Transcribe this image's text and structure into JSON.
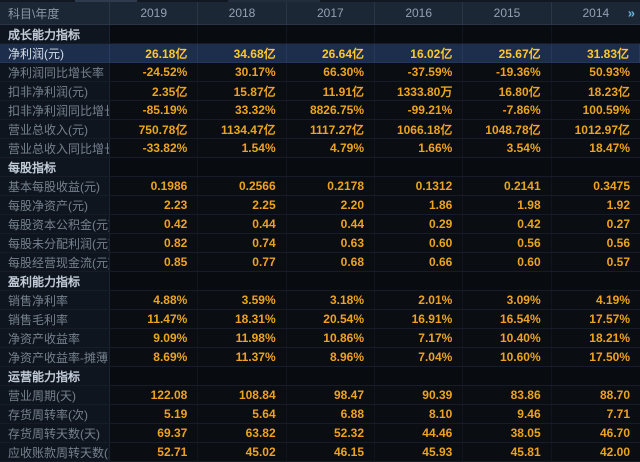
{
  "table": {
    "corner_label": "科目\\年度",
    "years": [
      "2019",
      "2018",
      "2017",
      "2016",
      "2015",
      "2014"
    ],
    "more_years_icon": "»",
    "rows": [
      {
        "type": "section",
        "label": "成长能力指标",
        "values": [
          "",
          "",
          "",
          "",
          "",
          ""
        ]
      },
      {
        "type": "data",
        "highlight": true,
        "label": "净利润(元)",
        "values": [
          "26.18亿",
          "34.68亿",
          "26.64亿",
          "16.02亿",
          "25.67亿",
          "31.83亿"
        ]
      },
      {
        "type": "data",
        "label": "净利润同比增长率",
        "values": [
          "-24.52%",
          "30.17%",
          "66.30%",
          "-37.59%",
          "-19.36%",
          "50.93%"
        ]
      },
      {
        "type": "data",
        "label": "扣非净利润(元)",
        "values": [
          "2.35亿",
          "15.87亿",
          "11.91亿",
          "1333.80万",
          "16.80亿",
          "18.23亿"
        ]
      },
      {
        "type": "data",
        "label": "扣非净利润同比增长率",
        "values": [
          "-85.19%",
          "33.32%",
          "8826.75%",
          "-99.21%",
          "-7.86%",
          "100.59%"
        ]
      },
      {
        "type": "data",
        "label": "营业总收入(元)",
        "values": [
          "750.78亿",
          "1134.47亿",
          "1117.27亿",
          "1066.18亿",
          "1048.78亿",
          "1012.97亿"
        ]
      },
      {
        "type": "data",
        "label": "营业总收入同比增长率",
        "values": [
          "-33.82%",
          "1.54%",
          "4.79%",
          "1.66%",
          "3.54%",
          "18.47%"
        ]
      },
      {
        "type": "section",
        "label": "每股指标",
        "values": [
          "",
          "",
          "",
          "",
          "",
          ""
        ]
      },
      {
        "type": "data",
        "label": "基本每股收益(元)",
        "values": [
          "0.1986",
          "0.2566",
          "0.2178",
          "0.1312",
          "0.2141",
          "0.3475"
        ]
      },
      {
        "type": "data",
        "label": "每股净资产(元)",
        "values": [
          "2.23",
          "2.25",
          "2.20",
          "1.86",
          "1.98",
          "1.92"
        ]
      },
      {
        "type": "data",
        "label": "每股资本公积金(元)",
        "values": [
          "0.42",
          "0.44",
          "0.44",
          "0.29",
          "0.42",
          "0.27"
        ]
      },
      {
        "type": "data",
        "label": "每股未分配利润(元)",
        "values": [
          "0.82",
          "0.74",
          "0.63",
          "0.60",
          "0.56",
          "0.56"
        ]
      },
      {
        "type": "data",
        "label": "每股经营现金流(元)",
        "values": [
          "0.85",
          "0.77",
          "0.68",
          "0.66",
          "0.60",
          "0.57"
        ]
      },
      {
        "type": "section",
        "label": "盈利能力指标",
        "values": [
          "",
          "",
          "",
          "",
          "",
          ""
        ]
      },
      {
        "type": "data",
        "label": "销售净利率",
        "values": [
          "4.88%",
          "3.59%",
          "3.18%",
          "2.01%",
          "3.09%",
          "4.19%"
        ]
      },
      {
        "type": "data",
        "label": "销售毛利率",
        "values": [
          "11.47%",
          "18.31%",
          "20.54%",
          "16.91%",
          "16.54%",
          "17.57%"
        ]
      },
      {
        "type": "data",
        "label": "净资产收益率",
        "values": [
          "9.09%",
          "11.98%",
          "10.86%",
          "7.17%",
          "10.40%",
          "18.21%"
        ]
      },
      {
        "type": "data",
        "label": "净资产收益率-摊薄",
        "values": [
          "8.69%",
          "11.37%",
          "8.96%",
          "7.04%",
          "10.60%",
          "17.50%"
        ]
      },
      {
        "type": "section",
        "label": "运营能力指标",
        "values": [
          "",
          "",
          "",
          "",
          "",
          ""
        ]
      },
      {
        "type": "data",
        "label": "营业周期(天)",
        "values": [
          "122.08",
          "108.84",
          "98.47",
          "90.39",
          "83.86",
          "88.70"
        ]
      },
      {
        "type": "data",
        "label": "存货周转率(次)",
        "values": [
          "5.19",
          "5.64",
          "6.88",
          "8.10",
          "9.46",
          "7.71"
        ]
      },
      {
        "type": "data",
        "label": "存货周转天数(天)",
        "values": [
          "69.37",
          "63.82",
          "52.32",
          "44.46",
          "38.05",
          "46.70"
        ]
      },
      {
        "type": "data",
        "label": "应收账款周转天数(天)",
        "values": [
          "52.71",
          "45.02",
          "46.15",
          "45.93",
          "45.81",
          "42.00"
        ]
      }
    ],
    "colors": {
      "background": "#0a0d12",
      "header_bg": "#1c2736",
      "label_column_bg": "#0f151e",
      "highlight_row_bg": "#1d2d4c",
      "value_text": "#eda321",
      "highlight_value_text": "#ffc62e",
      "header_text": "#94a0b2",
      "more_icon_color": "#6db3dc"
    }
  }
}
